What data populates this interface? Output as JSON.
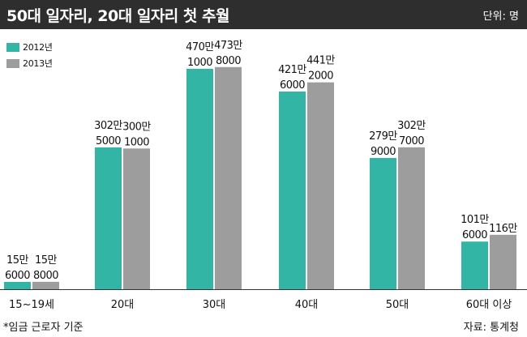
{
  "title": "50대 일자리, 20대 일자리 첫 추월",
  "unit_label": "단위: 명",
  "footnote": "*임금 근로자 기준",
  "source": "자료: 통계청",
  "colors": {
    "series_2012": "#33b5a6",
    "series_2013": "#9d9d9d",
    "title_bg": "#2e2e2e"
  },
  "chart_data": {
    "type": "bar",
    "categories": [
      "15~19세",
      "20대",
      "30대",
      "40대",
      "50대",
      "60대 이상"
    ],
    "series": [
      {
        "name": "2012년",
        "values": [
          156000,
          3025000,
          4701000,
          4216000,
          2799000,
          1016000
        ],
        "labels": [
          [
            "15만",
            "6000"
          ],
          [
            "302만",
            "5000"
          ],
          [
            "470만",
            "1000"
          ],
          [
            "421만",
            "6000"
          ],
          [
            "279만",
            "9000"
          ],
          [
            "101만",
            "6000"
          ]
        ]
      },
      {
        "name": "2013년",
        "values": [
          158000,
          3001000,
          4738000,
          4412000,
          3027000,
          1160000
        ],
        "labels": [
          [
            "15만",
            "8000"
          ],
          [
            "300만",
            "1000"
          ],
          [
            "473만",
            "8000"
          ],
          [
            "441만",
            "2000"
          ],
          [
            "302만",
            "7000"
          ],
          [
            "116만",
            ""
          ]
        ]
      }
    ],
    "ylim": [
      0,
      5000000
    ],
    "grid": false,
    "legend_position": "top-left"
  }
}
